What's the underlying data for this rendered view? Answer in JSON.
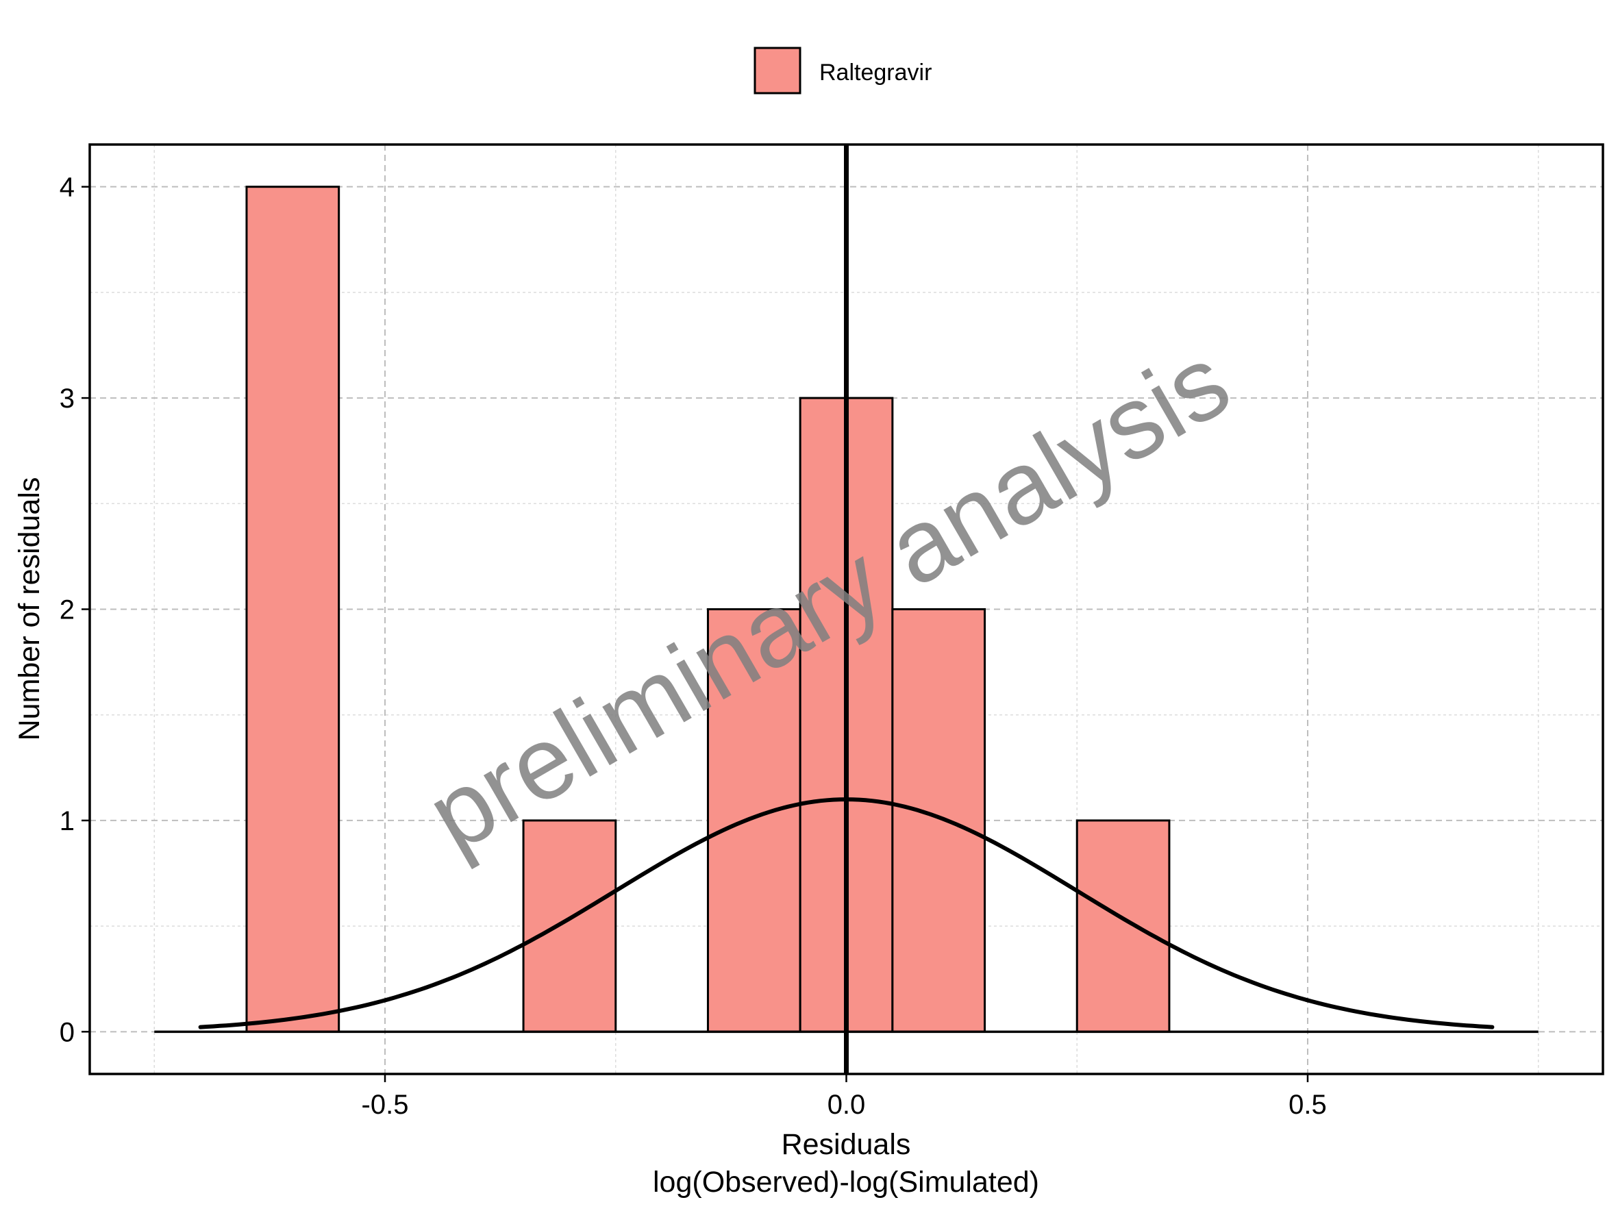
{
  "chart_data": {
    "type": "histogram",
    "series": [
      {
        "name": "Raltegravir",
        "color": "#F8928A",
        "bins": [
          {
            "x0": -0.65,
            "x1": -0.55,
            "count": 4
          },
          {
            "x0": -0.35,
            "x1": -0.25,
            "count": 1
          },
          {
            "x0": -0.15,
            "x1": -0.05,
            "count": 2
          },
          {
            "x0": -0.05,
            "x1": 0.05,
            "count": 3
          },
          {
            "x0": 0.05,
            "x1": 0.15,
            "count": 2
          },
          {
            "x0": 0.25,
            "x1": 0.35,
            "count": 1
          }
        ]
      }
    ],
    "normal_curve": {
      "mean": 0.0,
      "sd": 0.25,
      "scale": 1.1,
      "x_range": [
        -0.7,
        0.7
      ]
    },
    "baseline_range": [
      -0.75,
      0.75
    ],
    "vline_x": 0.0,
    "xlim": [
      -0.82,
      0.82
    ],
    "ylim": [
      -0.2,
      4.2
    ],
    "xticks": [
      -0.5,
      0.0,
      0.5
    ],
    "xtick_labels": [
      "-0.5",
      "0.0",
      "0.5"
    ],
    "xminor": [
      -0.75,
      -0.25,
      0.25,
      0.75
    ],
    "yticks": [
      0,
      1,
      2,
      3,
      4
    ],
    "ytick_labels": [
      "0",
      "1",
      "2",
      "3",
      "4"
    ],
    "yminor": [
      0.5,
      1.5,
      2.5,
      3.5
    ],
    "xlabel_line1": "Residuals",
    "xlabel_line2": "log(Observed)-log(Simulated)",
    "ylabel": "Number of residuals",
    "legend": {
      "position": "top",
      "entries": [
        "Raltegravir"
      ]
    },
    "grid": true,
    "watermark": "preliminary analysis"
  }
}
